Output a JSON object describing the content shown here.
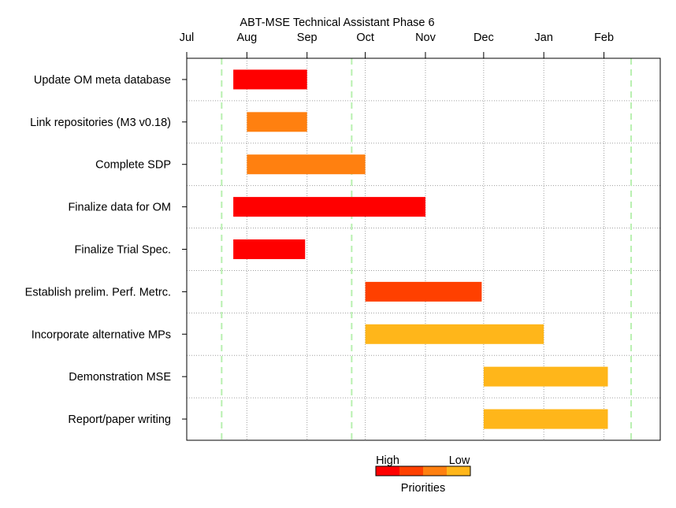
{
  "chart_data": {
    "type": "gantt",
    "title": "ABT-MSE Technical Assistant Phase 6",
    "x_axis": {
      "scale": "date",
      "ticks": [
        "Jul",
        "Aug",
        "Sep",
        "Oct",
        "Nov",
        "Dec",
        "Jan",
        "Feb"
      ],
      "tick_dates": [
        "2015-07-01",
        "2015-08-01",
        "2015-09-01",
        "2015-10-01",
        "2015-11-01",
        "2015-12-01",
        "2016-01-01",
        "2016-02-01"
      ],
      "range": [
        "2015-07-01",
        "2016-03-01"
      ],
      "position": "top",
      "grid": true
    },
    "reference_lines": [
      "2015-07-19",
      "2015-09-24",
      "2016-02-15"
    ],
    "tasks": [
      {
        "label": "Update OM meta database",
        "start": "2015-07-25",
        "end": "2015-09-01",
        "priority": 1
      },
      {
        "label": "Link repositories (M3 v0.18)",
        "start": "2015-08-01",
        "end": "2015-09-01",
        "priority": 3
      },
      {
        "label": "Complete SDP",
        "start": "2015-08-01",
        "end": "2015-10-01",
        "priority": 3
      },
      {
        "label": "Finalize data for OM",
        "start": "2015-07-25",
        "end": "2015-11-01",
        "priority": 1
      },
      {
        "label": "Finalize Trial Spec.",
        "start": "2015-07-25",
        "end": "2015-08-31",
        "priority": 1
      },
      {
        "label": "Establish prelim. Perf. Metrc.",
        "start": "2015-10-01",
        "end": "2015-11-30",
        "priority": 2
      },
      {
        "label": "Incorporate alternative MPs",
        "start": "2015-10-01",
        "end": "2016-01-01",
        "priority": 4
      },
      {
        "label": "Demonstration MSE",
        "start": "2015-12-01",
        "end": "2016-02-03",
        "priority": 4
      },
      {
        "label": "Report/paper writing",
        "start": "2015-12-01",
        "end": "2016-02-03",
        "priority": 4
      }
    ],
    "priority_colors": [
      "#ff0000",
      "#ff4000",
      "#ff8010",
      "#ffb61a",
      "#ffb61a"
    ],
    "legend": {
      "title": "Priorities",
      "high_label": "High",
      "low_label": "Low",
      "colors": [
        "#ff0000",
        "#ff4000",
        "#ff8010",
        "#ffb61a"
      ],
      "placement": "bottom"
    },
    "colors": {
      "grid": "#a0a0a0",
      "reference_line": "#b8f0b0",
      "axis": "#000000"
    }
  }
}
